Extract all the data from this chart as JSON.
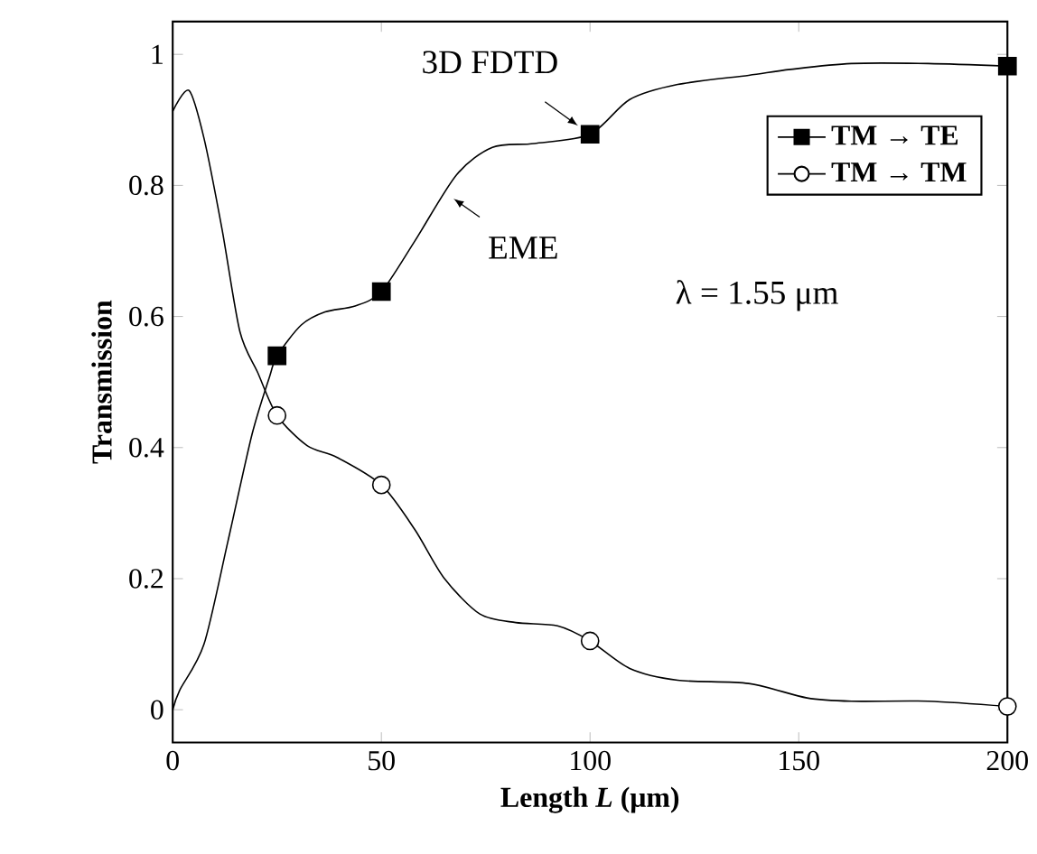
{
  "chart_data": {
    "type": "line",
    "xlabel": "Length *L* (μm)",
    "ylabel": "Transmission",
    "xlim": [
      0,
      200
    ],
    "ylim": [
      -0.05,
      1.05
    ],
    "xticks": [
      0,
      50,
      100,
      150,
      200
    ],
    "yticks": [
      0,
      0.2,
      0.4,
      0.6,
      0.8,
      1
    ],
    "grid": false,
    "legend": "top right",
    "series": [
      {
        "marker": "none",
        "color": "#000000",
        "x": [
          0,
          1.7,
          7.5,
          13.2,
          19,
          23.3,
          25,
          30.8,
          36.5,
          43.7,
          50,
          58,
          68,
          76.6,
          86.6,
          100,
          109.5,
          121,
          138,
          148,
          162.6,
          181,
          200
        ],
        "values": [
          0,
          0.03,
          0.1,
          0.256,
          0.42,
          0.51,
          0.54,
          0.587,
          0.607,
          0.616,
          0.638,
          0.715,
          0.816,
          0.858,
          0.864,
          0.878,
          0.931,
          0.954,
          0.968,
          0.977,
          0.986,
          0.986,
          0.982
        ]
      },
      {
        "marker": "none",
        "color": "#000000",
        "x": [
          0,
          3.9,
          7.5,
          11.8,
          16.1,
          20.4,
          25,
          32.2,
          39.4,
          50,
          58,
          65,
          73.6,
          82.2,
          92.2,
          100,
          109.5,
          121,
          138,
          152,
          162.6,
          181,
          200
        ],
        "values": [
          0.913,
          0.945,
          0.872,
          0.734,
          0.577,
          0.514,
          0.449,
          0.403,
          0.385,
          0.343,
          0.275,
          0.201,
          0.146,
          0.133,
          0.128,
          0.105,
          0.063,
          0.045,
          0.04,
          0.018,
          0.013,
          0.013,
          0.005
        ]
      },
      {
        "type": "scatter",
        "name": "TM → TE",
        "marker": "square",
        "color": "#000000",
        "x": [
          25,
          50,
          100,
          200
        ],
        "values": [
          0.54,
          0.638,
          0.878,
          0.982
        ]
      },
      {
        "type": "scatter",
        "name": "TM → TM",
        "marker": "circle",
        "color": "#000000",
        "x": [
          25,
          50,
          100,
          200
        ],
        "values": [
          0.449,
          0.343,
          0.105,
          0.005
        ]
      }
    ],
    "annotations": [
      {
        "text": "3D FDTD",
        "x": 100,
        "y": 0.878
      },
      {
        "text": "EME",
        "x": 65,
        "y": 0.79
      },
      "λ = 1.55 μm"
    ]
  }
}
